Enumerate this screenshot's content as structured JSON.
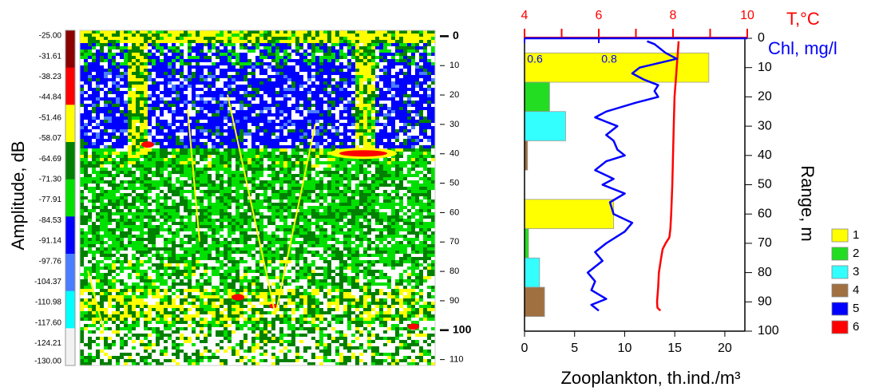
{
  "chart_data": [
    {
      "type": "echogram",
      "ylabel": "Amplitude, dB",
      "colorbar": {
        "lim": [
          -130,
          -25
        ],
        "colors": [
          "#8b0000",
          "#ff0000",
          "#ffff00",
          "#008000",
          "#00e000",
          "#0000ff",
          "#4a7dff",
          "#00ffff",
          "#f2f2f2"
        ],
        "ticks": [
          {
            "value": -25,
            "label": "-25.00"
          },
          {
            "value": -31.61,
            "label": "-31.61"
          },
          {
            "value": -38.23,
            "label": "-38.23"
          },
          {
            "value": -44.84,
            "label": "-44.84"
          },
          {
            "value": -51.46,
            "label": "-51.46"
          },
          {
            "value": -58.07,
            "label": "-58.07"
          },
          {
            "value": -64.69,
            "label": "-64.69"
          },
          {
            "value": -71.3,
            "label": "-71.30"
          },
          {
            "value": -77.91,
            "label": "-77.91"
          },
          {
            "value": -84.53,
            "label": "-84.53"
          },
          {
            "value": -91.14,
            "label": "-91.14"
          },
          {
            "value": -97.76,
            "label": "-97.76"
          },
          {
            "value": -104.37,
            "label": "-104.37"
          },
          {
            "value": -110.98,
            "label": "-110.98"
          },
          {
            "value": -117.6,
            "label": "-117.60"
          },
          {
            "value": -124.21,
            "label": "-124.21"
          },
          {
            "value": -130,
            "label": "-130.00"
          }
        ]
      },
      "ylim": [
        -2,
        112
      ],
      "yticks": [
        0,
        10,
        20,
        30,
        40,
        50,
        60,
        70,
        80,
        90,
        100,
        110
      ]
    },
    {
      "type": "profile",
      "xlabel": "Zooplankton, th.ind./m³",
      "ylabel": "Range, m",
      "xlim": [
        0,
        22
      ],
      "xticks": [
        0,
        5,
        10,
        15,
        20
      ],
      "ylim": [
        0,
        100
      ],
      "yticks": [
        0,
        10,
        20,
        30,
        40,
        50,
        60,
        70,
        80,
        90,
        100
      ],
      "x2lim": [
        4,
        10
      ],
      "x2ticks": [
        4,
        6,
        8,
        10
      ],
      "x2minor": [
        5,
        7,
        9
      ],
      "x3lim": [
        0.6,
        1.2
      ],
      "x3ticks": [
        0.6,
        0.8
      ],
      "bars": {
        "depths": [
          10,
          20,
          30,
          40,
          60,
          70,
          80,
          90
        ],
        "values": [
          18.4,
          2.5,
          4.1,
          0.3,
          8.9,
          0.4,
          1.5,
          2.0
        ],
        "colors": [
          "#ffff00",
          "#22dd22",
          "#33ffff",
          "#a07040",
          "#ffff00",
          "#22dd22",
          "#33ffff",
          "#a07040"
        ]
      },
      "series": [
        {
          "name": "T,°C",
          "color": "#ff0000",
          "axis": "x2",
          "depths": [
            1,
            5,
            10,
            15,
            20,
            30,
            40,
            50,
            60,
            65,
            68,
            70,
            72,
            75,
            80,
            85,
            90,
            92,
            93
          ],
          "values": [
            8.15,
            8.13,
            8.1,
            8.07,
            8.04,
            8.02,
            8.0,
            7.98,
            7.95,
            7.93,
            7.9,
            7.8,
            7.72,
            7.68,
            7.62,
            7.6,
            7.57,
            7.58,
            7.66
          ]
        },
        {
          "name": "Chl, mg/l",
          "color": "#0000ff",
          "axis": "x3",
          "depths": [
            1,
            2,
            5,
            7,
            10,
            12,
            14,
            16,
            18,
            20,
            22,
            25,
            27,
            30,
            33,
            35,
            38,
            40,
            42,
            45,
            48,
            50,
            53,
            56,
            60,
            63,
            66,
            70,
            73,
            76,
            80,
            83,
            86,
            89,
            91,
            93
          ],
          "values": [
            0.93,
            0.95,
            0.98,
            1.01,
            0.91,
            0.89,
            0.92,
            0.96,
            0.95,
            0.96,
            0.9,
            0.82,
            0.79,
            0.85,
            0.82,
            0.84,
            0.85,
            0.87,
            0.82,
            0.79,
            0.84,
            0.81,
            0.87,
            0.83,
            0.84,
            0.89,
            0.87,
            0.82,
            0.79,
            0.81,
            0.77,
            0.79,
            0.78,
            0.82,
            0.78,
            0.8
          ]
        }
      ],
      "legend": [
        {
          "label": "1",
          "color": "#ffff00"
        },
        {
          "label": "2",
          "color": "#22dd22"
        },
        {
          "label": "3",
          "color": "#33ffff"
        },
        {
          "label": "4",
          "color": "#a07040"
        },
        {
          "label": "5",
          "color": "#0000ff"
        },
        {
          "label": "6",
          "color": "#ff0000"
        }
      ]
    }
  ]
}
